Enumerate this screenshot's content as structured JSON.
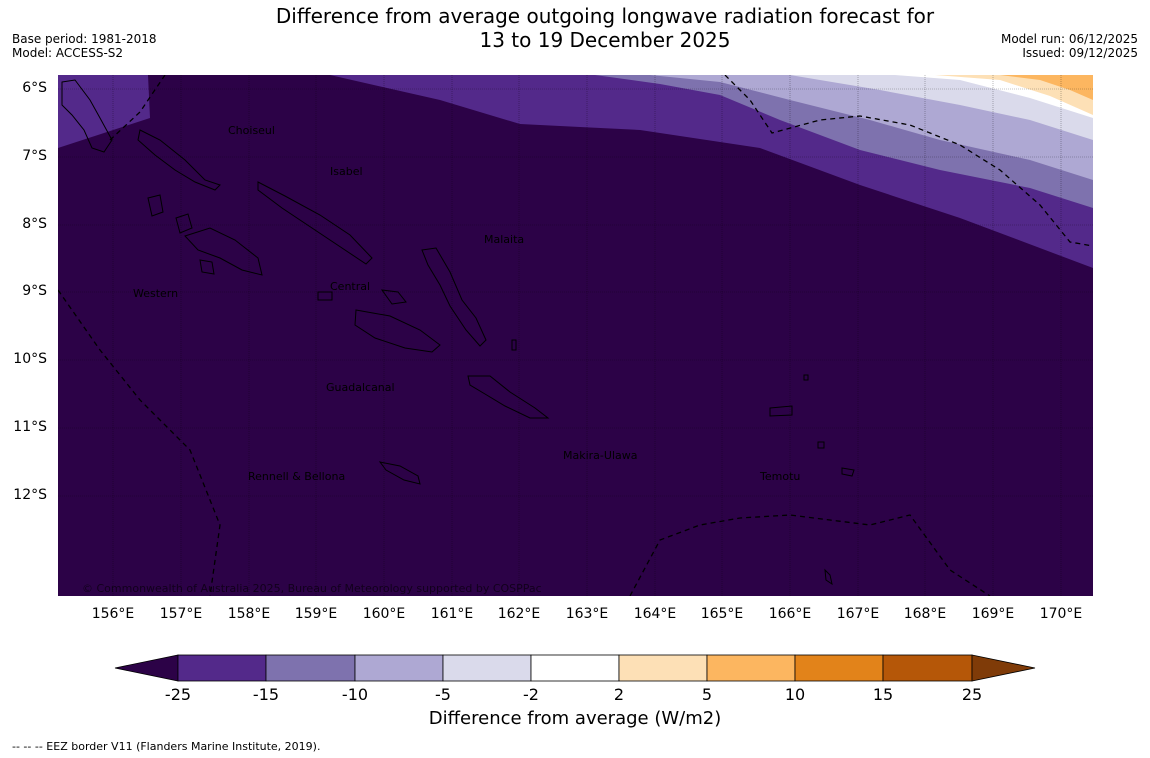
{
  "title": {
    "line1": "Difference from average outgoing longwave radiation forecast for",
    "line2": "13 to 19 December 2025"
  },
  "meta_left": {
    "base_period": "Base period: 1981-2018",
    "model": "Model: ACCESS-S2"
  },
  "meta_right": {
    "model_run": "Model run: 06/12/2025",
    "issued": "Issued: 09/12/2025"
  },
  "lat_labels": [
    "6°S",
    "7°S",
    "8°S",
    "9°S",
    "10°S",
    "11°S",
    "12°S"
  ],
  "lon_labels": [
    "156°E",
    "157°E",
    "158°E",
    "159°E",
    "160°E",
    "161°E",
    "162°E",
    "163°E",
    "164°E",
    "165°E",
    "166°E",
    "167°E",
    "168°E",
    "169°E",
    "170°E"
  ],
  "provinces": [
    "Choiseul",
    "Isabel",
    "Malaita",
    "Western",
    "Central",
    "Guadalcanal",
    "Makira-Ulawa",
    "Rennell & Bellona",
    "Temotu"
  ],
  "copyright": "© Commonwealth of Australia 2025, Bureau of Meteorology supported by COSPPac",
  "colorbar": {
    "ticks": [
      "-25",
      "-15",
      "-10",
      "-5",
      "-2",
      "2",
      "5",
      "10",
      "15",
      "25"
    ],
    "colors": [
      "#2c0247",
      "#53298a",
      "#7e72ae",
      "#aea8d3",
      "#dadaeb",
      "#ffffff",
      "#fde0b6",
      "#fcb660",
      "#e2831a",
      "#b55708",
      "#7f3b08"
    ],
    "title": "Difference from average (W/m2)"
  },
  "footer": "--  --  -- EEZ border V11 (Flanders Marine Institute, 2019)."
}
